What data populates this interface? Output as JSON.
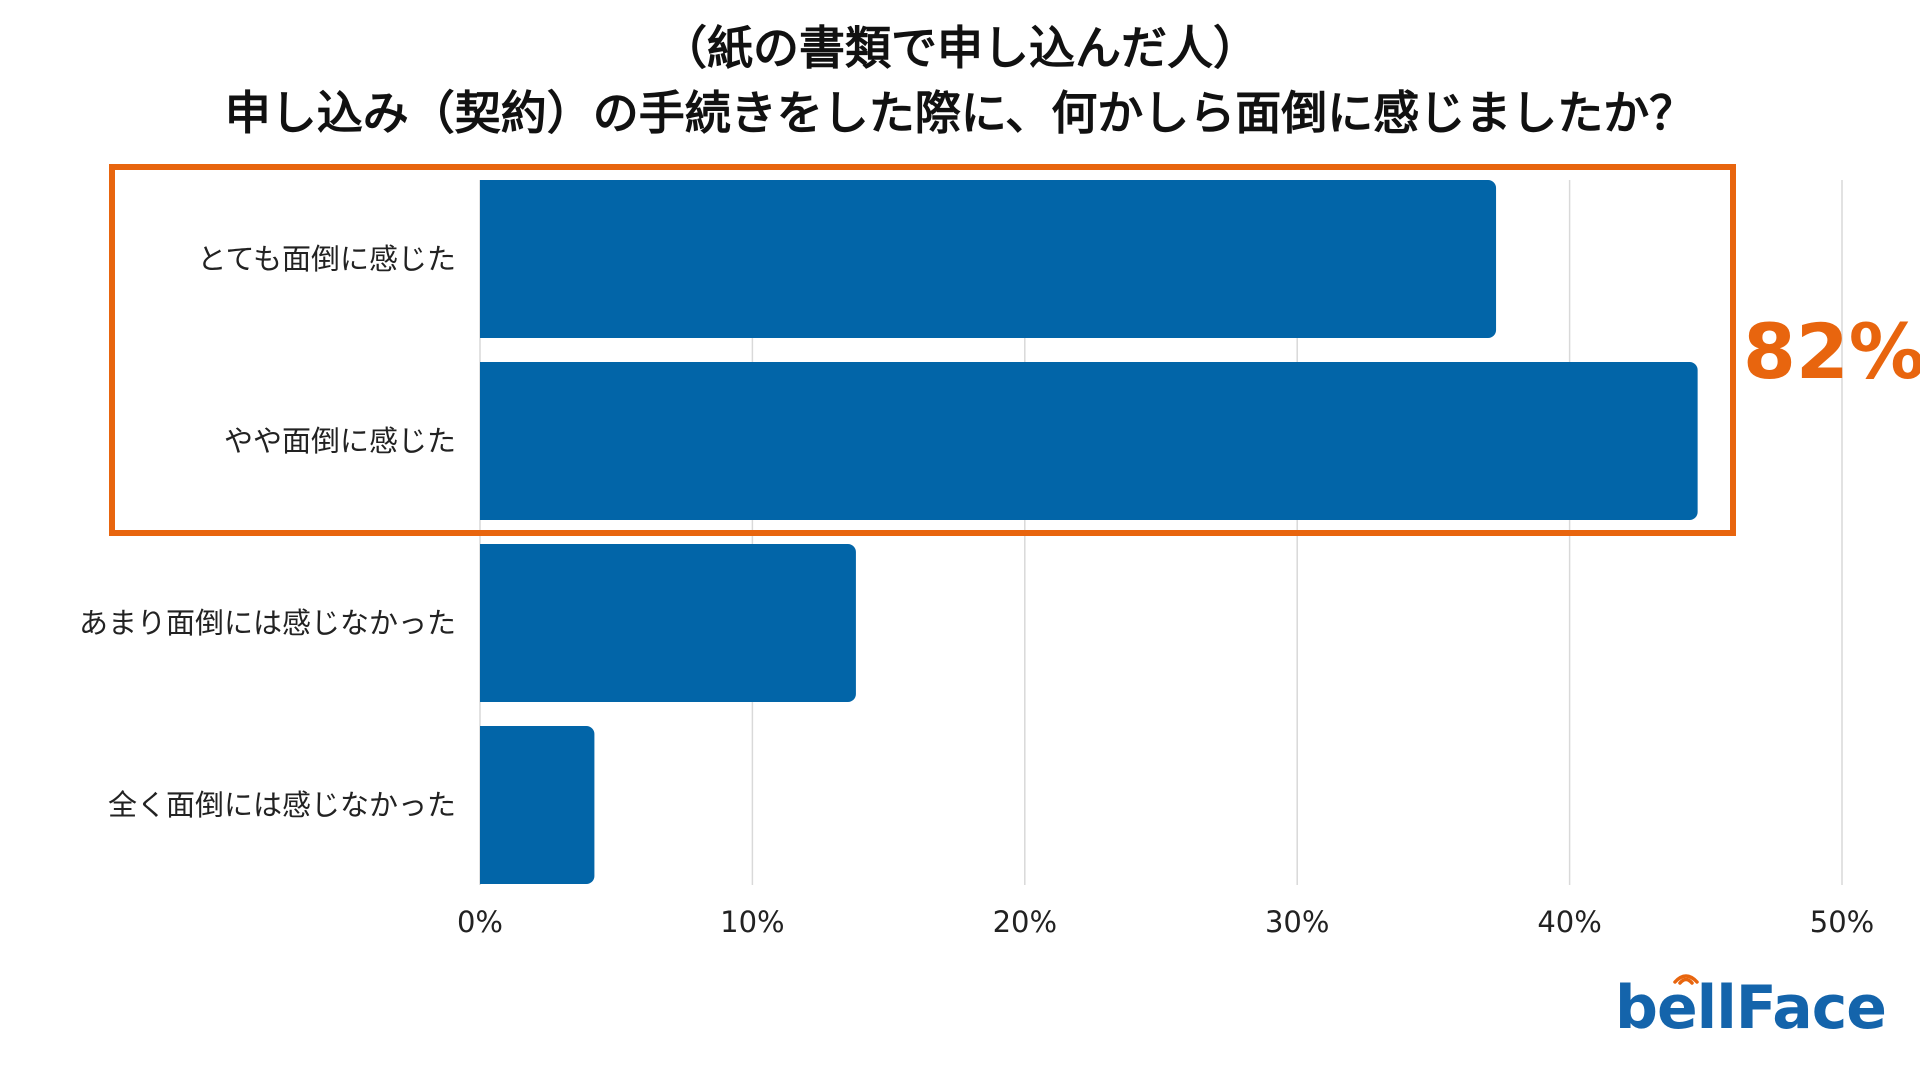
{
  "title": {
    "line1": "（紙の書類で申し込んだ人）",
    "line2": "申し込み（契約）の手続きをした際に、何かしら面倒に感じましたか？"
  },
  "logo": {
    "text": "bellFace"
  },
  "colors": {
    "bar": "#0265a8",
    "highlight": "#e8650e",
    "grid": "#d9d9d9",
    "logo": "#1464ab"
  },
  "chart_data": {
    "type": "bar",
    "orientation": "horizontal",
    "categories": [
      "とても面倒に感じた",
      "やや面倒に感じた",
      "あまり面倒には感じなかった",
      "全く面倒には感じなかった"
    ],
    "values": [
      37.3,
      44.7,
      13.8,
      4.2
    ],
    "unit": "%",
    "xlim": [
      0,
      50
    ],
    "xticks": [
      "0%",
      "10%",
      "20%",
      "30%",
      "40%",
      "50%"
    ],
    "grid": true,
    "legend": "none",
    "annotation": {
      "text": "82%",
      "covers_categories": [
        0,
        1
      ]
    }
  }
}
